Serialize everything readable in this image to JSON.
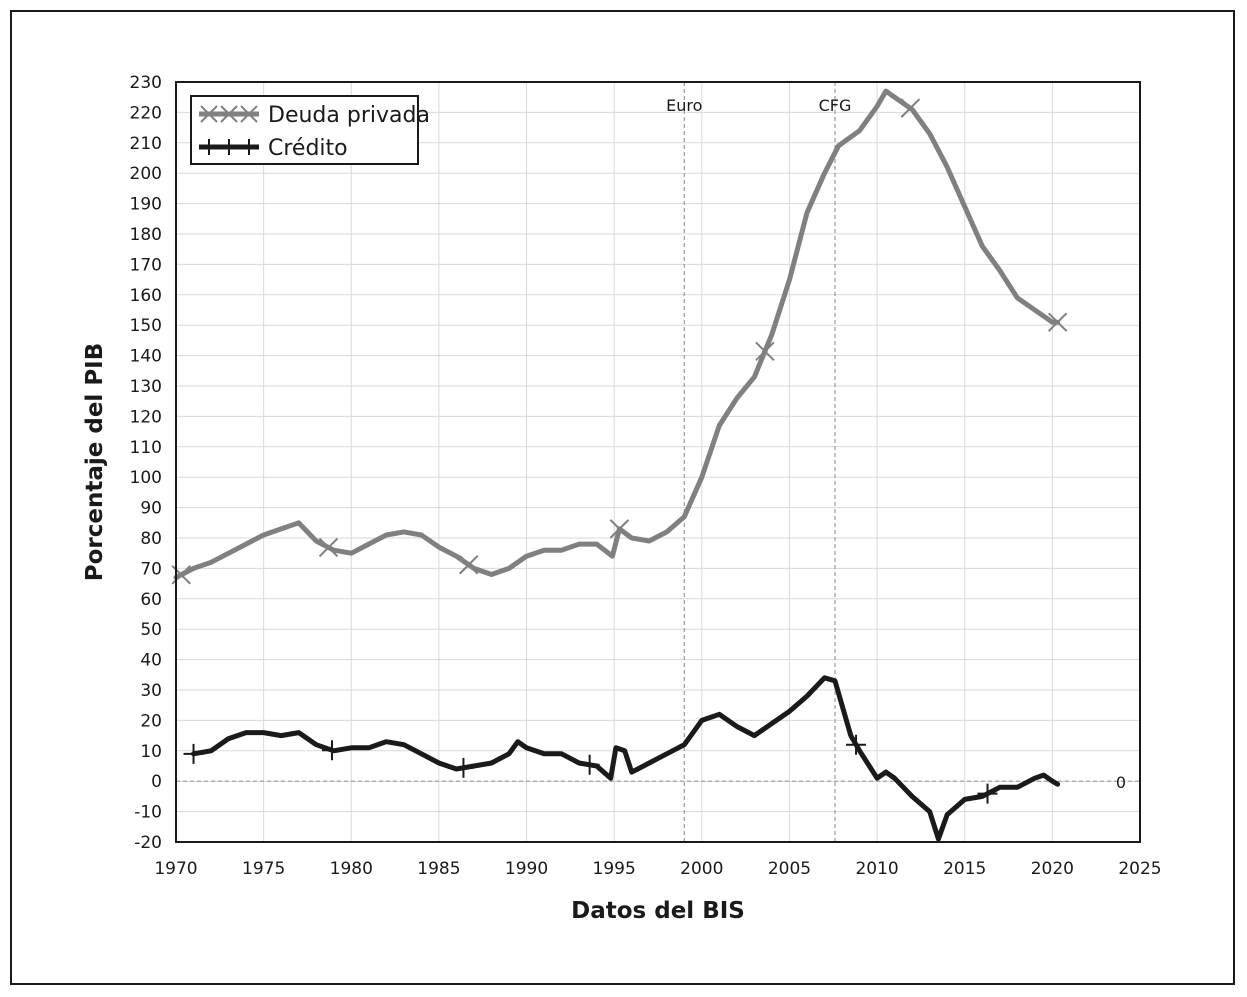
{
  "chart_data": {
    "type": "line",
    "title": "",
    "xlabel": "Datos del BIS",
    "ylabel": "Porcentaje del PIB",
    "xlim": [
      1970,
      2025
    ],
    "ylim": [
      -20,
      230
    ],
    "xticks": [
      1970,
      1975,
      1980,
      1985,
      1990,
      1995,
      2000,
      2005,
      2010,
      2015,
      2020,
      2025
    ],
    "yticks": [
      -20,
      -10,
      0,
      10,
      20,
      30,
      40,
      50,
      60,
      70,
      80,
      90,
      100,
      110,
      120,
      130,
      140,
      150,
      160,
      170,
      180,
      190,
      200,
      210,
      220,
      230
    ],
    "grid": true,
    "legend_position": "top-left",
    "annotations": [
      {
        "text": "Euro",
        "x": 1999,
        "type": "vline"
      },
      {
        "text": "CFG",
        "x": 2007.6,
        "type": "vline"
      },
      {
        "text": "0",
        "y": 0,
        "type": "hline"
      }
    ],
    "series": [
      {
        "name": "Deuda privada",
        "color": "#808080",
        "marker": "x",
        "marker_x": [
          1970.3,
          1978.7,
          1986.7,
          1995.3,
          2003.6,
          2011.9,
          2020.3
        ],
        "x": [
          1970,
          1971,
          1972,
          1973,
          1974,
          1975,
          1976,
          1977,
          1978,
          1979,
          1980,
          1981,
          1982,
          1983,
          1984,
          1985,
          1986,
          1987,
          1988,
          1989,
          1990,
          1991,
          1992,
          1993,
          1994,
          1994.9,
          1995.3,
          1996,
          1997,
          1998,
          1999,
          2000,
          2001,
          2002,
          2003,
          2004,
          2005,
          2006,
          2007,
          2007.8,
          2009,
          2010,
          2010.5,
          2011,
          2012,
          2013,
          2014,
          2015,
          2016,
          2017,
          2018,
          2019,
          2020,
          2020.3
        ],
        "values": [
          67,
          70,
          72,
          75,
          78,
          81,
          83,
          85,
          79,
          76,
          75,
          78,
          81,
          82,
          81,
          77,
          74,
          70,
          68,
          70,
          74,
          76,
          76,
          78,
          78,
          74,
          83,
          80,
          79,
          82,
          87,
          100,
          117,
          126,
          133,
          147,
          165,
          187,
          200,
          209,
          214,
          222,
          227,
          225,
          221,
          213,
          202,
          189,
          176,
          168,
          159,
          155,
          151,
          151
        ]
      },
      {
        "name": "Crédito",
        "color": "#1a1a1a",
        "marker": "+",
        "marker_x": [
          1971,
          1978.9,
          1986.4,
          1993.6,
          2008.8,
          2016.3
        ],
        "x": [
          1971,
          1972,
          1973,
          1974,
          1975,
          1976,
          1977,
          1978,
          1979,
          1980,
          1981,
          1982,
          1983,
          1984,
          1985,
          1986,
          1987,
          1988,
          1989,
          1989.5,
          1990,
          1991,
          1992,
          1993,
          1994,
          1994.8,
          1995.1,
          1995.6,
          1996,
          1997,
          1998,
          1999,
          2000,
          2001,
          2002,
          2003,
          2004,
          2005,
          2006,
          2007,
          2007.6,
          2008.5,
          2009,
          2010,
          2010.5,
          2011,
          2012,
          2013,
          2013.5,
          2014,
          2014.8,
          2015,
          2016,
          2017,
          2018,
          2019,
          2019.5,
          2020,
          2020.3
        ],
        "values": [
          9,
          10,
          14,
          16,
          16,
          15,
          16,
          12,
          10,
          11,
          11,
          13,
          12,
          9,
          6,
          4,
          5,
          6,
          9,
          13,
          11,
          9,
          9,
          6,
          5,
          1,
          11,
          10,
          3,
          6,
          9,
          12,
          20,
          22,
          18,
          15,
          19,
          23,
          28,
          34,
          33,
          15,
          10,
          1,
          3,
          1,
          -5,
          -10,
          -19,
          -11,
          -7,
          -6,
          -5,
          -2,
          -2,
          1,
          2,
          0,
          -1
        ]
      }
    ]
  }
}
